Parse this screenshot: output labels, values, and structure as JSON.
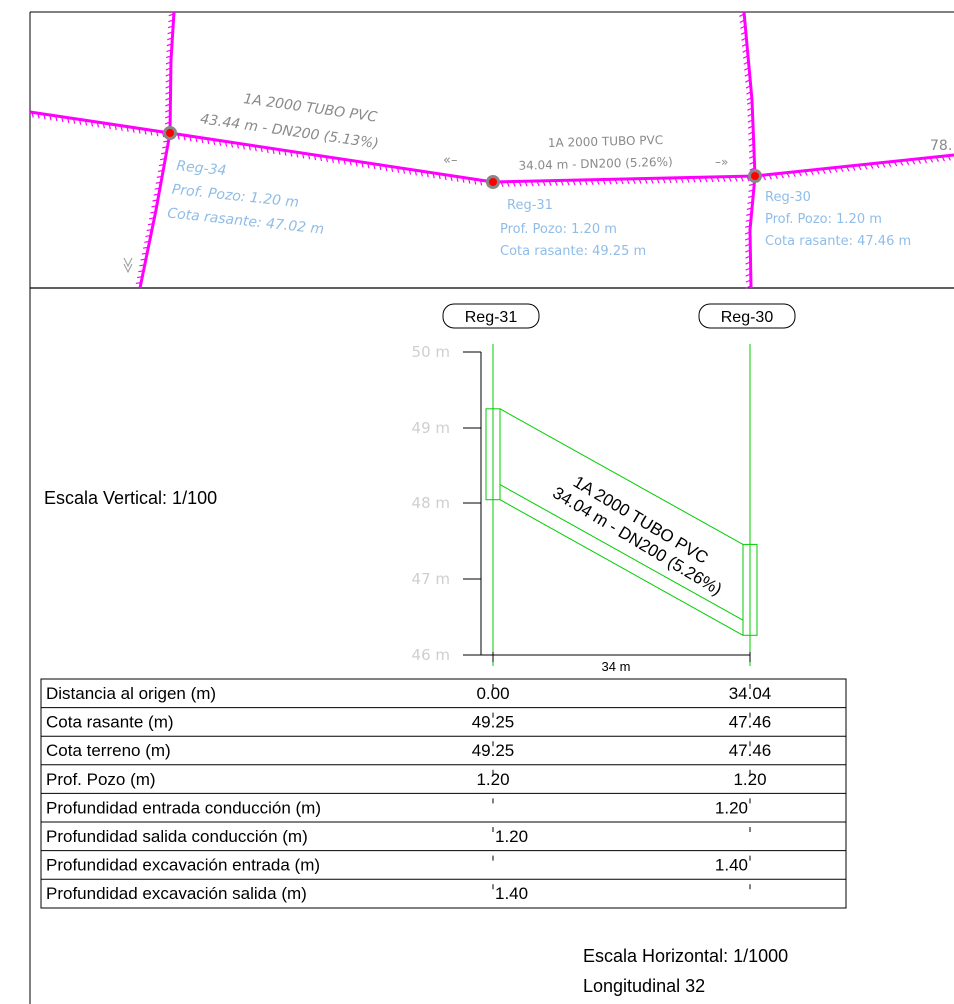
{
  "plan": {
    "pipes": [
      {
        "line1": "1A 2000 TUBO PVC",
        "line2": "43.44 m - DN200 (5.13%)",
        "arrow": "«–"
      },
      {
        "line1": "1A 2000 TUBO PVC",
        "line2": "34.04 m - DN200 (5.26%)",
        "arrow": "–»"
      },
      {
        "partial": "78."
      }
    ],
    "nodes": [
      {
        "name": "Reg-34",
        "prof": "Prof. Pozo: 1.20 m",
        "cota": "Cota rasante: 47.02 m"
      },
      {
        "name": "Reg-31",
        "prof": "Prof. Pozo: 1.20 m",
        "cota": "Cota rasante: 49.25 m"
      },
      {
        "name": "Reg-30",
        "prof": "Prof. Pozo: 1.20 m",
        "cota": "Cota rasante: 47.46 m"
      }
    ],
    "colors": {
      "network": "#ff00ff",
      "label": "#8fbde8",
      "pipe_label": "#8a8a8a",
      "node_dot": "#ff0000",
      "node_ring": "#888888"
    }
  },
  "profile": {
    "wells": [
      "Reg-31",
      "Reg-30"
    ],
    "elev_ticks": [
      "50 m",
      "49 m",
      "48 m",
      "47 m",
      "46 m"
    ],
    "elev_range": [
      46,
      50
    ],
    "distance_label": "34 m",
    "pipe_label_1": "1A 2000 TUBO PVC",
    "pipe_label_2": "34.04 m - DN200 (5.26%)",
    "vertical_scale": "Escala Vertical: 1/100",
    "line_color": "#00cc00",
    "well_data": [
      {
        "distance": 0.0,
        "ground": 49.25,
        "invert": 48.05
      },
      {
        "distance": 34.04,
        "ground": 47.46,
        "invert": 46.26
      }
    ]
  },
  "table": {
    "rows": [
      {
        "label": "Distancia al origen (m)",
        "v1": "0.00",
        "v2": "34.04"
      },
      {
        "label": "Cota rasante (m)",
        "v1": "49.25",
        "v2": "47.46"
      },
      {
        "label": "Cota terreno (m)",
        "v1": "49.25",
        "v2": "47.46"
      },
      {
        "label": "Prof. Pozo (m)",
        "v1": "1.20",
        "v2": "1.20"
      },
      {
        "label": "Profundidad entrada conducción (m)",
        "v1": "",
        "v2": "1.20"
      },
      {
        "label": "Profundidad salida conducción (m)",
        "v1": "1.20",
        "v2": ""
      },
      {
        "label": "Profundidad excavación entrada (m)",
        "v1": "",
        "v2": "1.40"
      },
      {
        "label": "Profundidad excavación salida (m)",
        "v1": "1.40",
        "v2": ""
      }
    ]
  },
  "footer": {
    "horizontal_scale": "Escala Horizontal: 1/1000",
    "title": "Longitudinal 32"
  }
}
